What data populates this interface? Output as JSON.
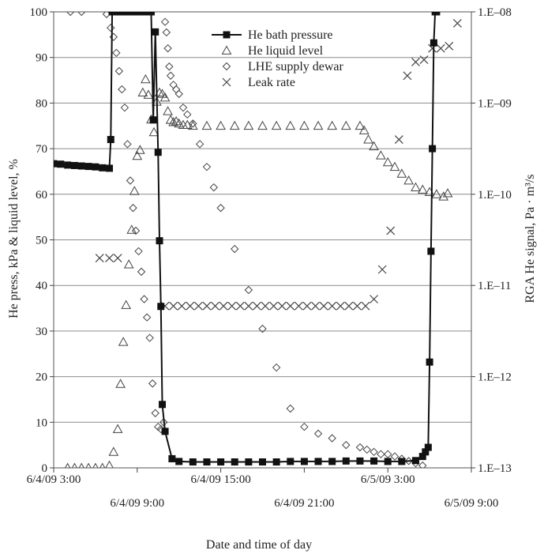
{
  "chart_data": {
    "type": "scatter",
    "title": "",
    "xlabel": "Date and time of day",
    "ylabel_left": "He press, kPa & liquid level, %",
    "ylabel_right": "RGA He signal, Pa · m³/s",
    "xlim_hours_from_6_4_09_0000": [
      3,
      33
    ],
    "ylim_left": [
      0,
      100
    ],
    "ylim_right_log": [
      1e-13,
      1e-08
    ],
    "grid": "horizontal",
    "legend_position": "top-center",
    "x_tick_labels_upper": [
      "6/4/09 3:00",
      "6/4/09 15:00",
      "6/5/09 3:00"
    ],
    "x_tick_labels_lower": [
      "6/4/09 9:00",
      "6/4/09 21:00",
      "6/5/09 9:00"
    ],
    "y_left_ticks": [
      "0",
      "10",
      "20",
      "30",
      "40",
      "50",
      "60",
      "70",
      "80",
      "90",
      "100"
    ],
    "y_right_ticks": [
      "1.E–13",
      "1.E–12",
      "1.E–11",
      "1.E–10",
      "1.E–09",
      "1.E–08"
    ],
    "series": [
      {
        "name": "He bath pressure",
        "marker": "filled-square",
        "line": true,
        "x": [
          3.0,
          3.5,
          4.0,
          4.5,
          5.0,
          5.5,
          6.0,
          6.5,
          7.0,
          7.1,
          7.2,
          7.35,
          7.5,
          7.65,
          7.8,
          8.0,
          8.5,
          9.0,
          9.3,
          9.5,
          9.7,
          9.9,
          10.0,
          10.15,
          10.3,
          10.5,
          10.6,
          10.7,
          10.8,
          11.0,
          11.5,
          12.0,
          13.0,
          14.0,
          15.0,
          16.0,
          17.0,
          18.0,
          19.0,
          20.0,
          21.0,
          22.0,
          23.0,
          24.0,
          25.0,
          26.0,
          27.0,
          28.0,
          29.0,
          29.5,
          29.7,
          29.9,
          30.0,
          30.1,
          30.2,
          30.3,
          30.4,
          30.5
        ],
        "y": [
          66.7,
          66.6,
          66.4,
          66.3,
          66.2,
          66.1,
          66.0,
          65.8,
          65.7,
          72,
          100,
          100,
          100,
          100,
          100,
          100,
          100,
          100,
          100,
          100,
          100,
          100,
          100,
          76.3,
          95.6,
          69.2,
          49.8,
          35.4,
          13.9,
          8,
          2,
          1.4,
          1.3,
          1.3,
          1.3,
          1.3,
          1.3,
          1.3,
          1.3,
          1.4,
          1.4,
          1.4,
          1.4,
          1.5,
          1.5,
          1.5,
          1.4,
          1.4,
          1.6,
          2.5,
          3.5,
          4.5,
          23.2,
          47.5,
          70,
          93.2,
          100,
          100
        ]
      },
      {
        "name": "He liquid level",
        "marker": "open-triangle",
        "line": false,
        "x": [
          4.0,
          4.5,
          5.0,
          5.5,
          6.0,
          6.5,
          7.0,
          7.3,
          7.6,
          7.8,
          8.0,
          8.2,
          8.4,
          8.6,
          8.8,
          9.0,
          9.2,
          9.4,
          9.6,
          9.8,
          10.0,
          10.2,
          10.4,
          10.6,
          10.8,
          11.0,
          11.2,
          11.4,
          11.6,
          11.8,
          12.0,
          12.3,
          12.6,
          13.0,
          14.0,
          15.0,
          16.0,
          17.0,
          18.0,
          19.0,
          20.0,
          21.0,
          22.0,
          23.0,
          24.0,
          25.0,
          25.3,
          25.6,
          26.0,
          26.5,
          27.0,
          27.5,
          28.0,
          28.5,
          29.0,
          29.5,
          30.0,
          30.5,
          31.0,
          31.3
        ],
        "y": [
          0,
          0,
          0,
          0,
          0,
          0,
          0.5,
          3.5,
          8.5,
          18.4,
          27.6,
          35.7,
          44.6,
          52.2,
          60.7,
          68.4,
          69.7,
          82.3,
          85.2,
          81.8,
          76.4,
          73.6,
          80.3,
          82.3,
          82.0,
          81.2,
          78.2,
          76.3,
          75.8,
          76.0,
          75.5,
          75.2,
          75.2,
          75.0,
          75.0,
          75.0,
          75.0,
          75.0,
          75.0,
          75.0,
          75.0,
          75.0,
          75.0,
          75.0,
          75.0,
          75.0,
          74.0,
          72.0,
          70.5,
          68.5,
          67.0,
          66.0,
          64.5,
          63.0,
          61.5,
          61.0,
          60.5,
          60.0,
          59.5,
          60.2
        ]
      },
      {
        "name": "LHE supply dewar",
        "marker": "open-diamond",
        "line": false,
        "x": [
          4.2,
          5.0,
          6.8,
          7.1,
          7.3,
          7.5,
          7.7,
          7.9,
          8.1,
          8.3,
          8.5,
          8.7,
          8.9,
          9.1,
          9.3,
          9.5,
          9.7,
          9.9,
          10.1,
          10.3,
          10.5,
          10.7,
          10.9,
          11.0,
          11.1,
          11.2,
          11.3,
          11.4,
          11.6,
          11.8,
          12.0,
          12.3,
          12.6,
          13.0,
          13.5,
          14.0,
          14.5,
          15.0,
          16.0,
          17.0,
          18.0,
          19.0,
          20.0,
          21.0,
          22.0,
          23.0,
          24.0,
          25.0,
          25.5,
          26.0,
          26.5,
          27.0,
          27.5,
          28.0,
          28.5,
          29.0,
          29.5
        ],
        "y": [
          100,
          100,
          99.5,
          96.5,
          94.5,
          91.0,
          87.0,
          83.0,
          79.0,
          71.0,
          63.0,
          57.0,
          52.0,
          47.5,
          43.0,
          37.0,
          33.0,
          28.5,
          18.5,
          12.0,
          9.0,
          8.5,
          10.0,
          97.8,
          95.5,
          92.0,
          88.0,
          86.0,
          84.0,
          83.0,
          82.0,
          79.0,
          77.5,
          75.5,
          71.0,
          66.0,
          61.5,
          57.0,
          48.0,
          39.0,
          30.5,
          22.0,
          13.0,
          9.0,
          7.5,
          6.5,
          5.0,
          4.5,
          4.0,
          3.5,
          3.0,
          3.0,
          2.5,
          2.0,
          1.5,
          1.0,
          0.5
        ]
      },
      {
        "name": "Leak rate",
        "marker": "x-cross",
        "line": false,
        "x": [
          6.3,
          7.0,
          7.6,
          11.0,
          11.6,
          12.2,
          12.8,
          13.4,
          14.0,
          14.6,
          15.2,
          15.8,
          16.4,
          17.0,
          17.6,
          18.2,
          18.8,
          19.4,
          20.0,
          20.6,
          21.2,
          21.8,
          22.4,
          23.0,
          23.6,
          24.2,
          24.8,
          25.4,
          26.0,
          26.6,
          27.2,
          27.8,
          28.4,
          29.0,
          29.6,
          30.2,
          30.8,
          31.4,
          32.0
        ],
        "y": [
          46,
          46,
          46,
          35.5,
          35.5,
          35.5,
          35.5,
          35.5,
          35.5,
          35.5,
          35.5,
          35.5,
          35.5,
          35.5,
          35.5,
          35.5,
          35.5,
          35.5,
          35.5,
          35.5,
          35.5,
          35.5,
          35.5,
          35.5,
          35.5,
          35.5,
          35.5,
          35.5,
          37.0,
          43.5,
          52.0,
          72.0,
          86.0,
          89.0,
          89.5,
          92.0,
          92.0,
          92.5,
          97.5
        ]
      }
    ]
  }
}
